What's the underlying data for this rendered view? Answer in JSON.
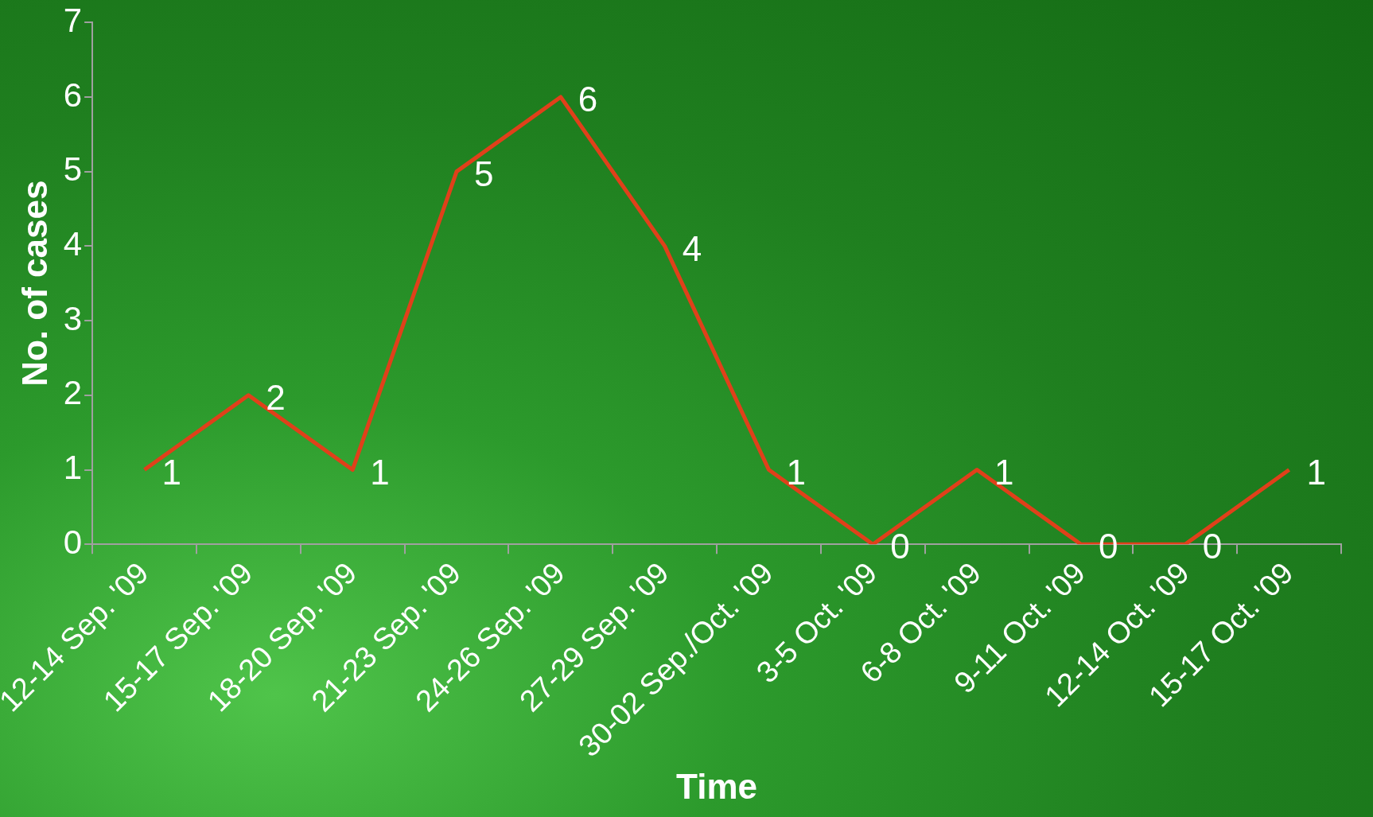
{
  "chart_data": {
    "type": "line",
    "xlabel": "Time",
    "ylabel": "No. of cases",
    "categories": [
      "12-14 Sep. '09",
      "15-17 Sep. '09",
      "18-20 Sep. '09",
      "21-23 Sep. '09",
      "24-26 Sep. '09",
      "27-29 Sep. '09",
      "30-02 Sep./Oct. '09",
      "3-5 Oct. '09",
      "6-8 Oct. '09",
      "9-11 Oct. '09",
      "12-14 Oct. '09",
      "15-17 Oct. '09"
    ],
    "values": [
      1,
      2,
      1,
      5,
      6,
      4,
      1,
      0,
      1,
      0,
      0,
      1
    ],
    "color": "#e0401a",
    "ylim": [
      0,
      7
    ],
    "yticks": [
      0,
      1,
      2,
      3,
      4,
      5,
      6,
      7
    ],
    "grid": false,
    "legend": false,
    "marker": "none",
    "line_style": "solid",
    "data_labels": true
  }
}
